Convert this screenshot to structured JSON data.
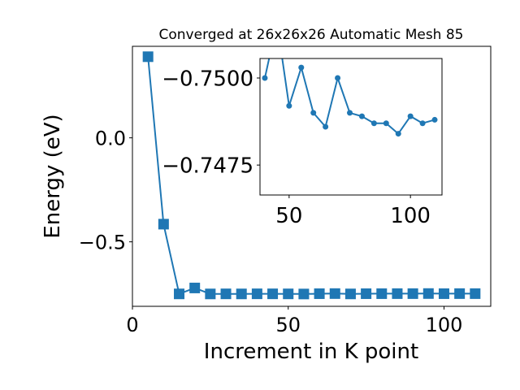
{
  "chart_data": [
    {
      "type": "line",
      "title": "Converged at 26x26x26 Automatic Mesh 85",
      "xlabel": "Increment in K point",
      "ylabel": "Energy (eV)",
      "xlim": [
        0,
        115
      ],
      "ylim": [
        -0.81,
        0.44
      ],
      "xticks": [
        0,
        50,
        100
      ],
      "xtick_labels": [
        "0",
        "50",
        "100"
      ],
      "yticks": [
        -0.5,
        0.0
      ],
      "ytick_labels": [
        "−0.5",
        "0.0"
      ],
      "marker": "square",
      "color": "#1f77b4",
      "series": [
        {
          "x": [
            5,
            10,
            15,
            20,
            25,
            30,
            35,
            40,
            45,
            50,
            55,
            60,
            65,
            70,
            75,
            80,
            85,
            90,
            95,
            100,
            105,
            110
          ],
          "y": [
            0.39,
            -0.415,
            -0.7503,
            -0.7218,
            -0.7505,
            -0.7501,
            -0.7504,
            -0.7499,
            -0.75,
            -0.7502,
            -0.7508,
            -0.7493,
            -0.7488,
            -0.7504,
            -0.7493,
            -0.7492,
            -0.749,
            -0.749,
            -0.7486,
            -0.7492,
            -0.7489,
            -0.749
          ]
        }
      ]
    },
    {
      "type": "line",
      "title": "",
      "xlabel": "",
      "ylabel": "",
      "xlim": [
        38,
        113
      ],
      "ylim": [
        -0.74664,
        -0.75056
      ],
      "xticks": [
        50,
        100
      ],
      "xtick_labels": [
        "50",
        "100"
      ],
      "yticks": [
        -0.75,
        -0.7475
      ],
      "ytick_labels": [
        "−0.7500",
        "−0.7475"
      ],
      "marker": "circle",
      "color": "#1f77b4",
      "series": [
        {
          "x": [
            40,
            45,
            50,
            55,
            60,
            65,
            70,
            75,
            80,
            85,
            90,
            95,
            100,
            105,
            110
          ],
          "y": [
            -0.75,
            -0.7516,
            -0.7492,
            -0.7503,
            -0.749,
            -0.7486,
            -0.75,
            -0.749,
            -0.7489,
            -0.7487,
            -0.7487,
            -0.7484,
            -0.7489,
            -0.7487,
            -0.7488
          ]
        }
      ]
    }
  ]
}
